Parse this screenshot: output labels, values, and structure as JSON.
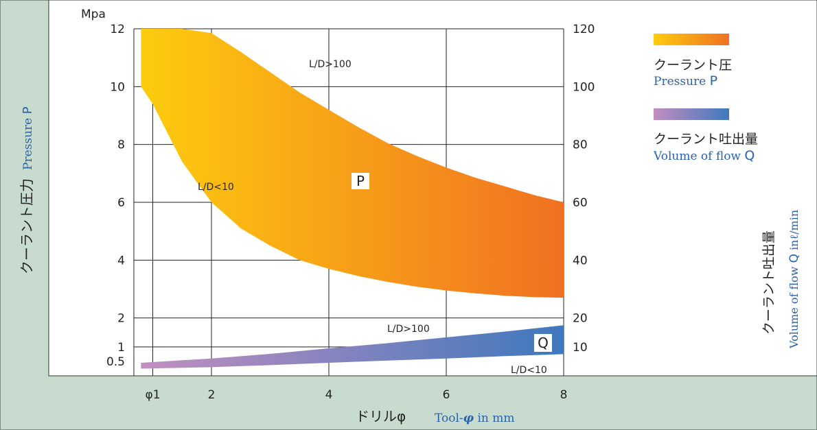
{
  "chart_data": {
    "type": "area",
    "y_unit": "Mpa",
    "x_ticks": [
      "φ1",
      "2",
      "4",
      "6",
      "8"
    ],
    "x_tick_values": [
      1,
      2,
      4,
      6,
      8
    ],
    "xlim": [
      0,
      8
    ],
    "y_left_ticks": [
      "12",
      "10",
      "8",
      "6",
      "4",
      "2",
      "1",
      "0.5"
    ],
    "y_left_tick_values": [
      12,
      10,
      8,
      6,
      4,
      2,
      1,
      0.5
    ],
    "ylim_left": [
      0,
      12
    ],
    "y_right_ticks": [
      "120",
      "100",
      "80",
      "60",
      "40",
      "20",
      "10"
    ],
    "y_right_tick_values": [
      120,
      100,
      80,
      60,
      40,
      20,
      10
    ],
    "ylim_right": [
      0,
      120
    ],
    "grid": true,
    "xlabel_jp": "ドリルφ",
    "xlabel_en": {
      "prefix": "Tool-",
      "symbol": "φ",
      "suffix": " in mm"
    },
    "ylabel_left_jp": "クーラント圧力",
    "ylabel_left_en": {
      "text": "Pressure ",
      "symbol": "P"
    },
    "ylabel_right_jp": "クーラント吐出量",
    "ylabel_right_en": {
      "text": "Volume of flow ",
      "symbol": "Q",
      "suffix": " inℓ/min"
    },
    "series": [
      {
        "name_jp": "クーラント圧",
        "name_en": "Pressure ",
        "symbol": "P",
        "axis": "left",
        "color_start": "#fdcc0e",
        "color_end": "#f07022",
        "x": [
          0.8,
          1.0,
          1.5,
          2.0,
          2.5,
          3.0,
          3.5,
          4.0,
          4.5,
          5.0,
          5.5,
          6.0,
          6.5,
          7.0,
          7.5,
          8.0
        ],
        "upper": [
          12.0,
          12.0,
          12.0,
          11.85,
          11.2,
          10.5,
          9.8,
          9.2,
          8.6,
          8.05,
          7.6,
          7.2,
          6.85,
          6.55,
          6.25,
          6.0
        ],
        "lower": [
          10.0,
          9.4,
          7.4,
          6.0,
          5.1,
          4.5,
          4.0,
          3.7,
          3.45,
          3.25,
          3.08,
          2.95,
          2.85,
          2.77,
          2.72,
          2.7
        ],
        "label_upper": "L/D>100",
        "label_lower": "L/D<10"
      },
      {
        "name_jp": "クーラント吐出量",
        "name_en": "Volume of flow ",
        "symbol": "Q",
        "axis": "right",
        "color_start": "#c28ebf",
        "color_end": "#3f78be",
        "x": [
          0.8,
          2.0,
          3.0,
          4.0,
          5.0,
          6.0,
          7.0,
          8.0
        ],
        "upper": [
          4.5,
          6.0,
          7.6,
          9.5,
          11.3,
          13.3,
          15.3,
          17.5
        ],
        "lower": [
          2.5,
          3.0,
          3.7,
          4.5,
          5.3,
          6.0,
          6.8,
          7.5
        ],
        "label_upper": "L/D>100",
        "label_lower": "L/D<10"
      }
    ]
  }
}
